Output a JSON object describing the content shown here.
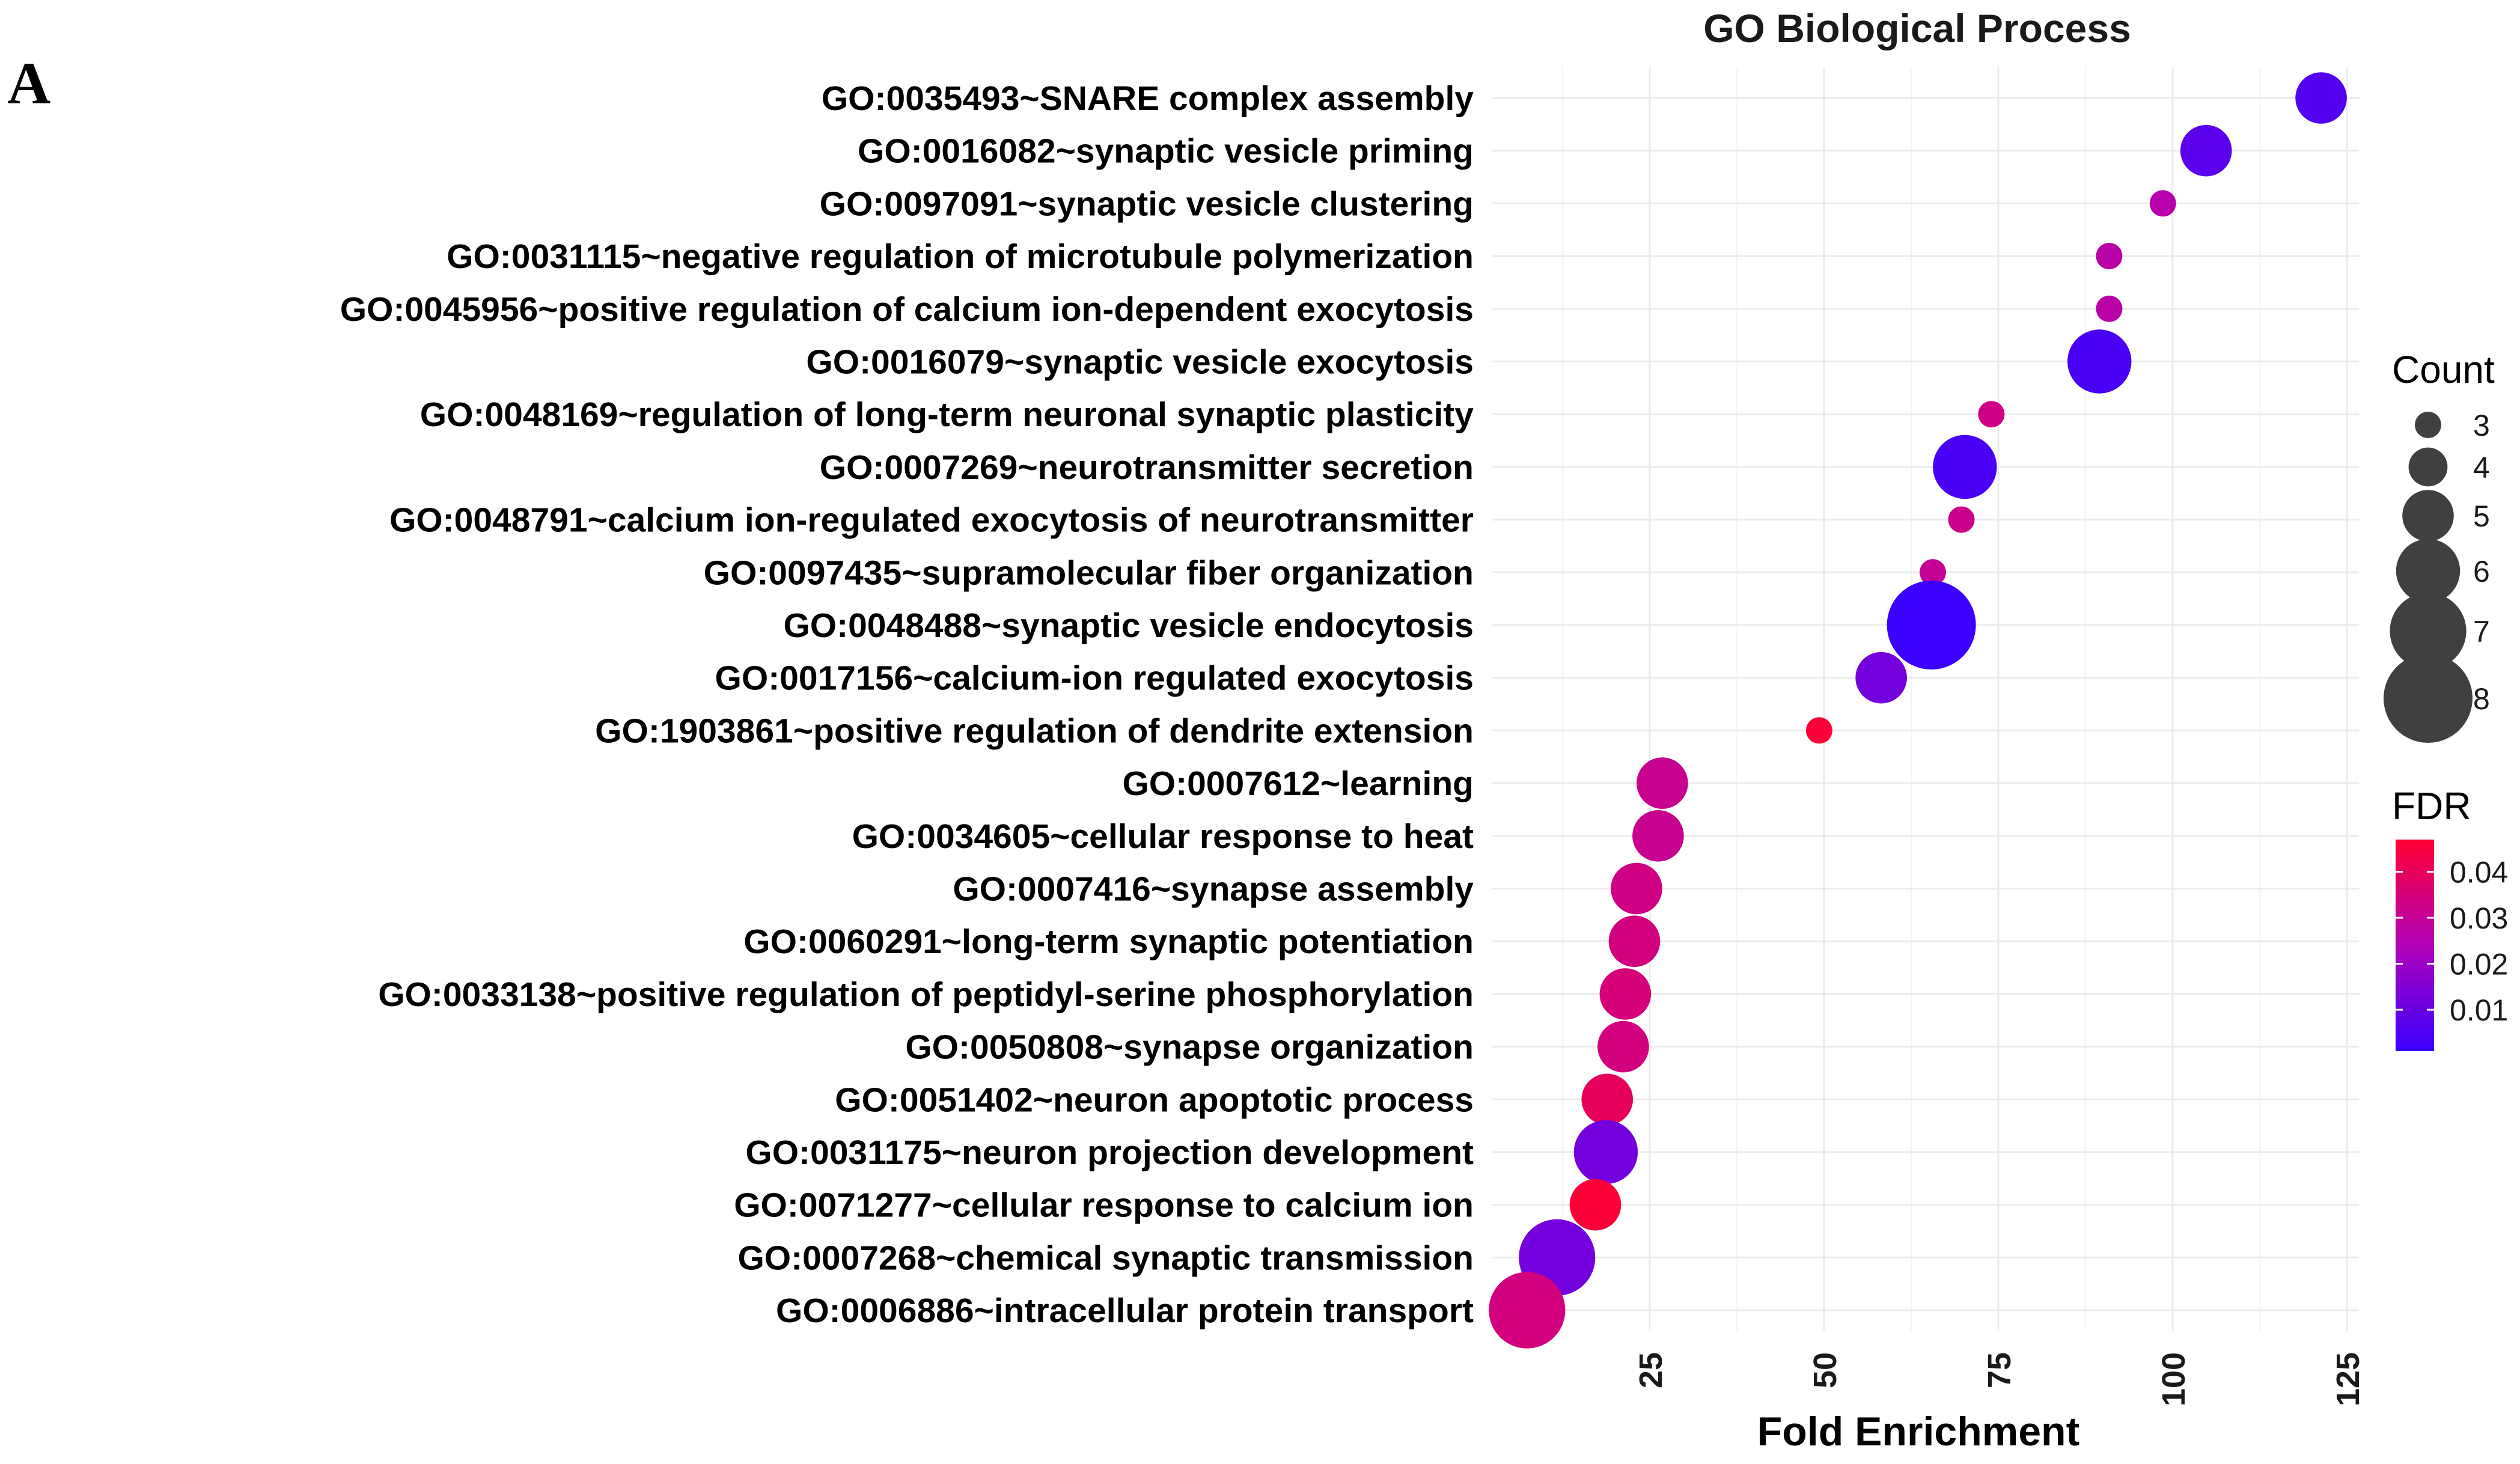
{
  "panel_label": "A",
  "chart_data": {
    "type": "scatter",
    "title": "GO Biological Process",
    "xlabel": "Fold Enrichment",
    "ylabel": "",
    "xlim": [
      0,
      127
    ],
    "xticks": [
      25,
      50,
      75,
      100,
      125
    ],
    "grid": true,
    "points": [
      {
        "term": "GO:0035493~SNARE complex assembly",
        "fold": 121.3,
        "count": 5,
        "fdr": 0.006
      },
      {
        "term": "GO:0016082~synaptic vesicle priming",
        "fold": 104.8,
        "count": 5,
        "fdr": 0.007
      },
      {
        "term": "GO:0097091~synaptic vesicle clustering",
        "fold": 98.6,
        "count": 3,
        "fdr": 0.026
      },
      {
        "term": "GO:0031115~negative regulation of microtubule polymerization",
        "fold": 90.9,
        "count": 3,
        "fdr": 0.027
      },
      {
        "term": "GO:0045956~positive regulation of calcium ion-dependent exocytosis",
        "fold": 90.9,
        "count": 3,
        "fdr": 0.027
      },
      {
        "term": "GO:0016079~synaptic vesicle exocytosis",
        "fold": 89.5,
        "count": 6,
        "fdr": 0.004
      },
      {
        "term": "GO:0048169~regulation of long-term neuronal synaptic plasticity",
        "fold": 74.0,
        "count": 3,
        "fdr": 0.033
      },
      {
        "term": "GO:0007269~neurotransmitter secretion",
        "fold": 70.2,
        "count": 6,
        "fdr": 0.004
      },
      {
        "term": "GO:0048791~calcium ion-regulated exocytosis of neurotransmitter",
        "fold": 69.7,
        "count": 3,
        "fdr": 0.032
      },
      {
        "term": "GO:0097435~supramolecular fiber organization",
        "fold": 65.6,
        "count": 3,
        "fdr": 0.03
      },
      {
        "term": "GO:0048488~synaptic vesicle endocytosis",
        "fold": 65.4,
        "count": 8,
        "fdr": 0.001
      },
      {
        "term": "GO:0017156~calcium-ion regulated exocytosis",
        "fold": 58.2,
        "count": 5,
        "fdr": 0.012
      },
      {
        "term": "GO:1903861~positive regulation of dendrite extension",
        "fold": 49.3,
        "count": 3,
        "fdr": 0.046
      },
      {
        "term": "GO:0007612~learning",
        "fold": 26.8,
        "count": 5,
        "fdr": 0.031
      },
      {
        "term": "GO:0034605~cellular response to heat",
        "fold": 26.2,
        "count": 5,
        "fdr": 0.031
      },
      {
        "term": "GO:0007416~synapse assembly",
        "fold": 23.1,
        "count": 5,
        "fdr": 0.033
      },
      {
        "term": "GO:0060291~long-term synaptic potentiation",
        "fold": 22.8,
        "count": 5,
        "fdr": 0.034
      },
      {
        "term": "GO:0033138~positive regulation of peptidyl-serine phosphorylation",
        "fold": 21.5,
        "count": 5,
        "fdr": 0.035
      },
      {
        "term": "GO:0050808~synapse organization",
        "fold": 21.2,
        "count": 5,
        "fdr": 0.034
      },
      {
        "term": "GO:0051402~neuron apoptotic process",
        "fold": 18.9,
        "count": 5,
        "fdr": 0.04
      },
      {
        "term": "GO:0031175~neuron projection development",
        "fold": 18.7,
        "count": 6,
        "fdr": 0.012
      },
      {
        "term": "GO:0071277~cellular response to calcium ion",
        "fold": 17.2,
        "count": 5,
        "fdr": 0.046
      },
      {
        "term": "GO:0007268~chemical synaptic transmission",
        "fold": 11.7,
        "count": 7,
        "fdr": 0.012
      },
      {
        "term": "GO:0006886~intracellular protein transport",
        "fold": 7.4,
        "count": 7,
        "fdr": 0.034
      }
    ],
    "legend": {
      "size": {
        "title": "Count",
        "values": [
          3,
          4,
          5,
          6,
          7,
          8
        ]
      },
      "color": {
        "title": "FDR",
        "ticks": [
          "0.04",
          "0.03",
          "0.02",
          "0.01"
        ],
        "tick_values": [
          0.04,
          0.03,
          0.02,
          0.01
        ],
        "min": 0.001,
        "max": 0.047,
        "low_color": "#3b00ff",
        "mid_color": "#b000b8",
        "high_color": "#ff0033"
      }
    }
  }
}
